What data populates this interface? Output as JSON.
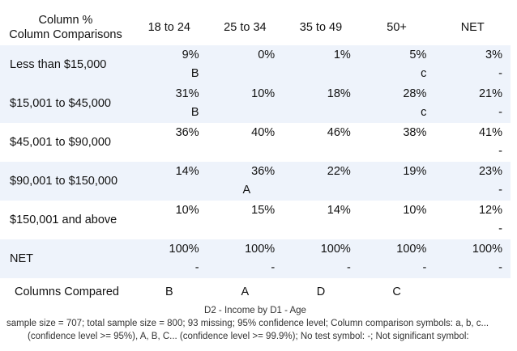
{
  "header": {
    "corner_line1": "Column %",
    "corner_line2": "Column Comparisons",
    "columns": [
      "18 to 24",
      "25 to 34",
      "35 to 49",
      "50+",
      "NET"
    ]
  },
  "rows": [
    {
      "label": "Less than $15,000",
      "cells": [
        {
          "value": "9%",
          "sig": "B"
        },
        {
          "value": "0%",
          "sig": ""
        },
        {
          "value": "1%",
          "sig": ""
        },
        {
          "value": "5%",
          "sig": "c"
        },
        {
          "value": "3%",
          "sig": "-"
        }
      ]
    },
    {
      "label": "$15,001 to $45,000",
      "cells": [
        {
          "value": "31%",
          "sig": "B"
        },
        {
          "value": "10%",
          "sig": ""
        },
        {
          "value": "18%",
          "sig": ""
        },
        {
          "value": "28%",
          "sig": "c"
        },
        {
          "value": "21%",
          "sig": "-"
        }
      ]
    },
    {
      "label": "$45,001 to $90,000",
      "cells": [
        {
          "value": "36%",
          "sig": ""
        },
        {
          "value": "40%",
          "sig": ""
        },
        {
          "value": "46%",
          "sig": ""
        },
        {
          "value": "38%",
          "sig": ""
        },
        {
          "value": "41%",
          "sig": "-"
        }
      ]
    },
    {
      "label": "$90,001 to $150,000",
      "cells": [
        {
          "value": "14%",
          "sig": ""
        },
        {
          "value": "36%",
          "sig": "A"
        },
        {
          "value": "22%",
          "sig": ""
        },
        {
          "value": "19%",
          "sig": ""
        },
        {
          "value": "23%",
          "sig": "-"
        }
      ]
    },
    {
      "label": "$150,001 and above",
      "cells": [
        {
          "value": "10%",
          "sig": ""
        },
        {
          "value": "15%",
          "sig": ""
        },
        {
          "value": "14%",
          "sig": ""
        },
        {
          "value": "10%",
          "sig": ""
        },
        {
          "value": "12%",
          "sig": "-"
        }
      ]
    },
    {
      "label": "NET",
      "cells": [
        {
          "value": "100%",
          "sig": "-"
        },
        {
          "value": "100%",
          "sig": "-"
        },
        {
          "value": "100%",
          "sig": "-"
        },
        {
          "value": "100%",
          "sig": "-"
        },
        {
          "value": "100%",
          "sig": "-"
        }
      ]
    }
  ],
  "compared": {
    "label": "Columns Compared",
    "values": [
      "B",
      "A",
      "D",
      "C",
      ""
    ]
  },
  "footer": {
    "title": "D2 - Income by D1 - Age",
    "note_line1": "sample size = 707; total sample size = 800; 93 missing; 95% confidence level; Column comparison symbols: a, b, c...",
    "note_line2": "(confidence level >= 95%), A, B, C... (confidence level >= 99.9%); No test symbol: -; Not significant symbol:"
  },
  "colors": {
    "alt_row": "#eef3fb",
    "text": "#111111"
  }
}
